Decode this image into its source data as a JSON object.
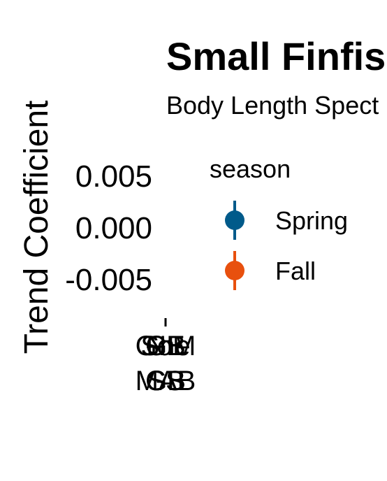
{
  "chart_data": {
    "type": "scatter",
    "title": "Small Finfis",
    "subtitle": "Body Length Spect",
    "ylabel": "Trend Coefficient",
    "xlabel": "",
    "y_ticks": [
      "0.005",
      "0.000",
      "-0.005"
    ],
    "x_categories": [
      {
        "line1": "GoM",
        "line2": "MAB"
      },
      {
        "line1": "Sne",
        "line2": "GB"
      },
      {
        "line1": "NE",
        "line2": "SS"
      },
      {
        "line1": "GB",
        "line2": "GB"
      }
    ],
    "ylim": [
      -0.0065,
      0.0065
    ],
    "legend": {
      "title": "season",
      "placement": "right",
      "items": [
        {
          "label": "Spring",
          "color": "#005a8a"
        },
        {
          "label": "Fall",
          "color": "#e8500e"
        }
      ]
    },
    "series": []
  }
}
